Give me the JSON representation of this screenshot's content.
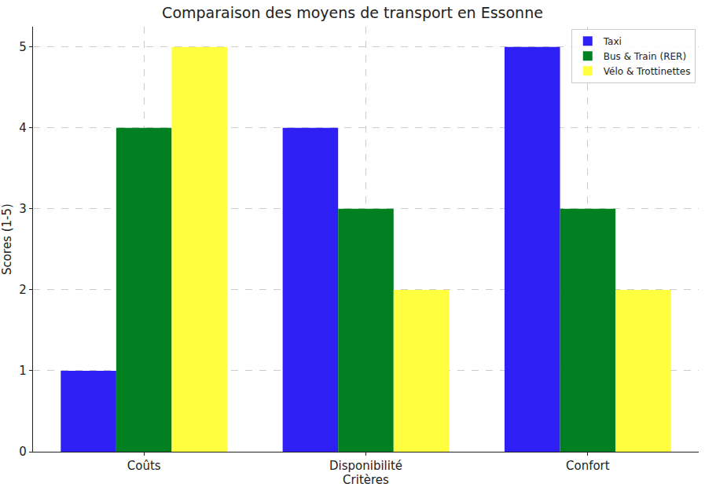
{
  "chart_data": {
    "type": "bar",
    "title": "Comparaison des moyens de transport en Essonne",
    "x_label": "Critères",
    "y_label": "Scores (1-5)",
    "categories": [
      "Coûts",
      "Disponibilité",
      "Confort"
    ],
    "series": [
      {
        "name": "Taxi",
        "color": "#2e20f5",
        "values": [
          1,
          4,
          5
        ]
      },
      {
        "name": "Bus & Train (RER)",
        "color": "#008020",
        "values": [
          4,
          3,
          3
        ]
      },
      {
        "name": "Vélo & Trottinettes",
        "color": "#ffff40",
        "values": [
          5,
          2,
          2
        ]
      }
    ],
    "ylim": [
      0,
      5.25
    ],
    "yticks": [
      0,
      1,
      2,
      3,
      4,
      5
    ],
    "grid": true,
    "legend": "upper right"
  }
}
